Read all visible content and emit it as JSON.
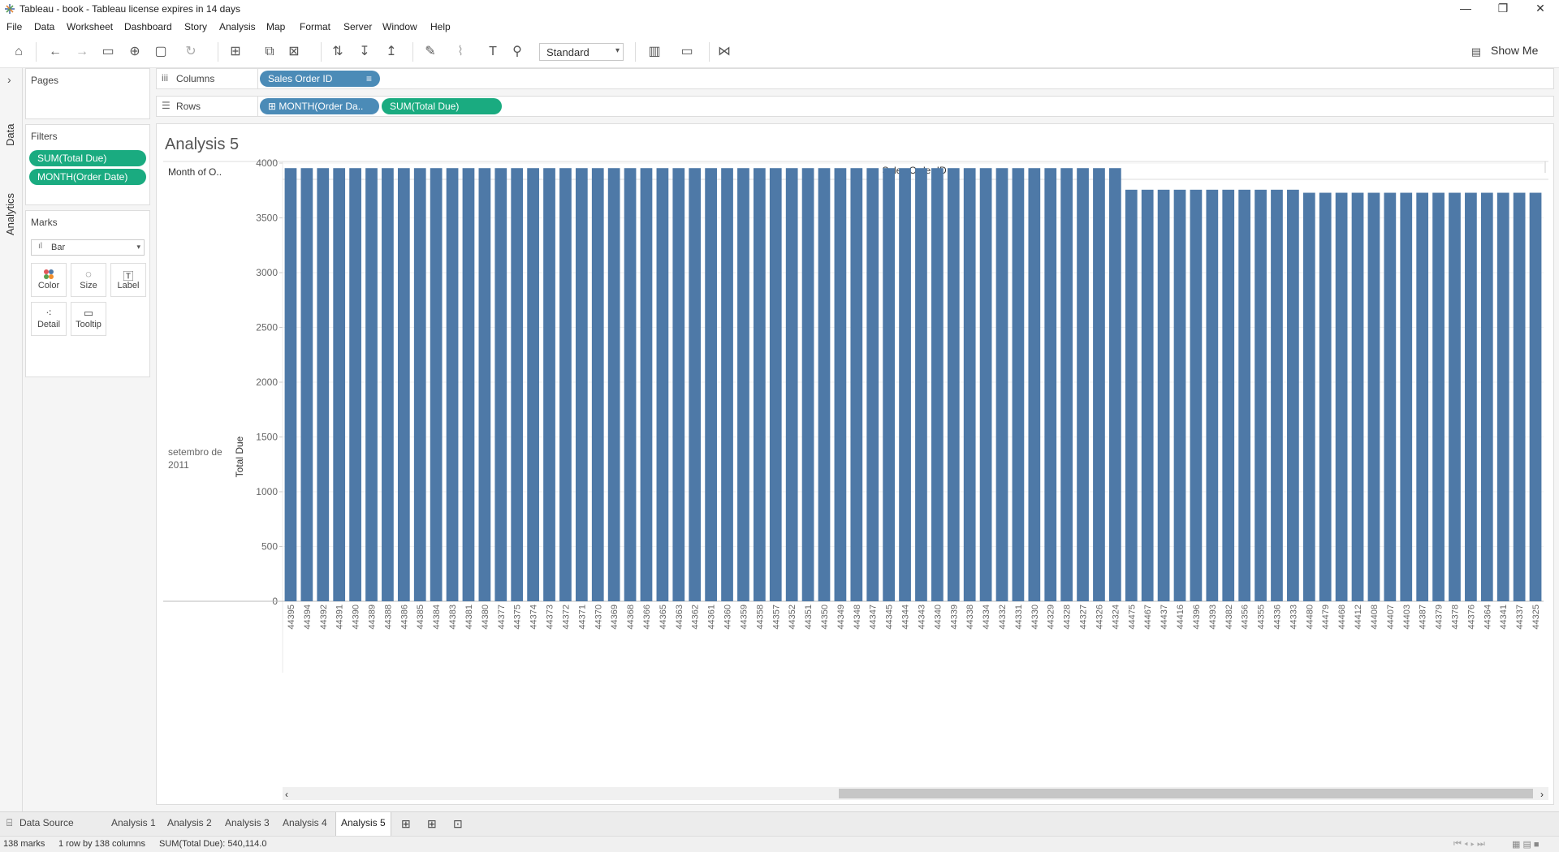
{
  "window": {
    "title": "Tableau - book - Tableau license expires in 14 days",
    "minimize_glyph": "—",
    "restore_glyph": "❐",
    "close_glyph": "✕"
  },
  "menu": [
    "File",
    "Data",
    "Worksheet",
    "Dashboard",
    "Story",
    "Analysis",
    "Map",
    "Format",
    "Server",
    "Window",
    "Help"
  ],
  "toolbar": {
    "fit_value": "Standard",
    "show_me_label": "Show Me",
    "icons": [
      "home-icon",
      "undo-icon",
      "redo-icon",
      "save-icon",
      "new-datasource-icon",
      "pause-updates-icon",
      "new-worksheet-icon",
      "duplicate-icon",
      "clear-icon",
      "swap-icon",
      "sort-asc-icon",
      "sort-desc-icon",
      "highlight-icon",
      "group-icon",
      "labels-icon",
      "fix-axes-icon",
      "view-cards-icon",
      "presentation-icon",
      "share-icon"
    ]
  },
  "side_tabs": {
    "data": "Data",
    "analytics": "Analytics",
    "collapse_glyph": "›"
  },
  "pages": {
    "title": "Pages"
  },
  "filters": {
    "title": "Filters",
    "items": [
      "SUM(Total Due)",
      "MONTH(Order Date)"
    ]
  },
  "marks": {
    "title": "Marks",
    "type": "Bar",
    "cards": [
      {
        "label": "Color",
        "icon": "color-icon"
      },
      {
        "label": "Size",
        "icon": "size-icon"
      },
      {
        "label": "Label",
        "icon": "label-icon"
      },
      {
        "label": "Detail",
        "icon": "detail-icon"
      },
      {
        "label": "Tooltip",
        "icon": "tooltip-icon"
      }
    ]
  },
  "shelves": {
    "columns_label": "Columns",
    "rows_label": "Rows",
    "columns_pills": [
      "Sales Order ID"
    ],
    "rows_pills": [
      "MONTH(Order Da..",
      "SUM(Total Due)"
    ]
  },
  "sheet": {
    "title": "Analysis 5",
    "row_header_title": "Month of O..",
    "column_header_title": "Sales Order ID",
    "row_value": "setembro de 2011"
  },
  "colors": {
    "bar": "#4e79a7",
    "pill_green": "#1aab80",
    "pill_blue": "#4b8bb7"
  },
  "chart_data": {
    "type": "bar",
    "ylabel": "Total Due",
    "xlabel": "Sales Order ID",
    "ylim": [
      0,
      4000
    ],
    "yticks": [
      0,
      500,
      1000,
      1500,
      2000,
      2500,
      3000,
      3500,
      4000
    ],
    "categories": [
      "44395",
      "44394",
      "44392",
      "44391",
      "44390",
      "44389",
      "44388",
      "44386",
      "44385",
      "44384",
      "44383",
      "44381",
      "44380",
      "44377",
      "44375",
      "44374",
      "44373",
      "44372",
      "44371",
      "44370",
      "44369",
      "44368",
      "44366",
      "44365",
      "44363",
      "44362",
      "44361",
      "44360",
      "44359",
      "44358",
      "44357",
      "44352",
      "44351",
      "44350",
      "44349",
      "44348",
      "44347",
      "44345",
      "44344",
      "44343",
      "44340",
      "44339",
      "44338",
      "44334",
      "44332",
      "44331",
      "44330",
      "44329",
      "44328",
      "44327",
      "44326",
      "44324",
      "44475",
      "44467",
      "44437",
      "44416",
      "44396",
      "44393",
      "44382",
      "44356",
      "44355",
      "44336",
      "44333",
      "44480",
      "44479",
      "44468",
      "44412",
      "44408",
      "44407",
      "44403",
      "44387",
      "44379",
      "44378",
      "44376",
      "44364",
      "44341",
      "44337",
      "44325"
    ],
    "values": [
      3953.99,
      3953.99,
      3953.99,
      3953.99,
      3953.99,
      3953.99,
      3953.99,
      3953.99,
      3953.99,
      3953.99,
      3953.99,
      3953.99,
      3953.99,
      3953.99,
      3953.99,
      3953.99,
      3953.99,
      3953.99,
      3953.99,
      3953.99,
      3953.99,
      3953.99,
      3953.99,
      3953.99,
      3953.99,
      3953.99,
      3953.99,
      3953.99,
      3953.99,
      3953.99,
      3953.99,
      3953.99,
      3953.99,
      3953.99,
      3953.99,
      3953.99,
      3953.99,
      3953.99,
      3953.99,
      3953.99,
      3953.99,
      3953.99,
      3953.99,
      3953.99,
      3953.99,
      3953.99,
      3953.99,
      3953.99,
      3953.99,
      3953.99,
      3953.99,
      3953.99,
      3756.99,
      3756.99,
      3756.99,
      3756.99,
      3756.99,
      3756.99,
      3756.99,
      3756.99,
      3756.99,
      3756.99,
      3756.99,
      3729.36,
      3729.36,
      3729.36,
      3729.36,
      3729.36,
      3729.36,
      3729.36,
      3729.36,
      3729.36,
      3729.36,
      3729.36,
      3729.36,
      3729.36,
      3729.36,
      3729.36
    ]
  },
  "bottom_tabs": {
    "data_source": "Data Source",
    "sheets": [
      "Analysis 1",
      "Analysis 2",
      "Analysis 3",
      "Analysis 4",
      "Analysis 5"
    ],
    "active": "Analysis 5"
  },
  "status": {
    "marks": "138 marks",
    "dims": "1 row by 138 columns",
    "sum": "SUM(Total Due): 540,114.0"
  }
}
